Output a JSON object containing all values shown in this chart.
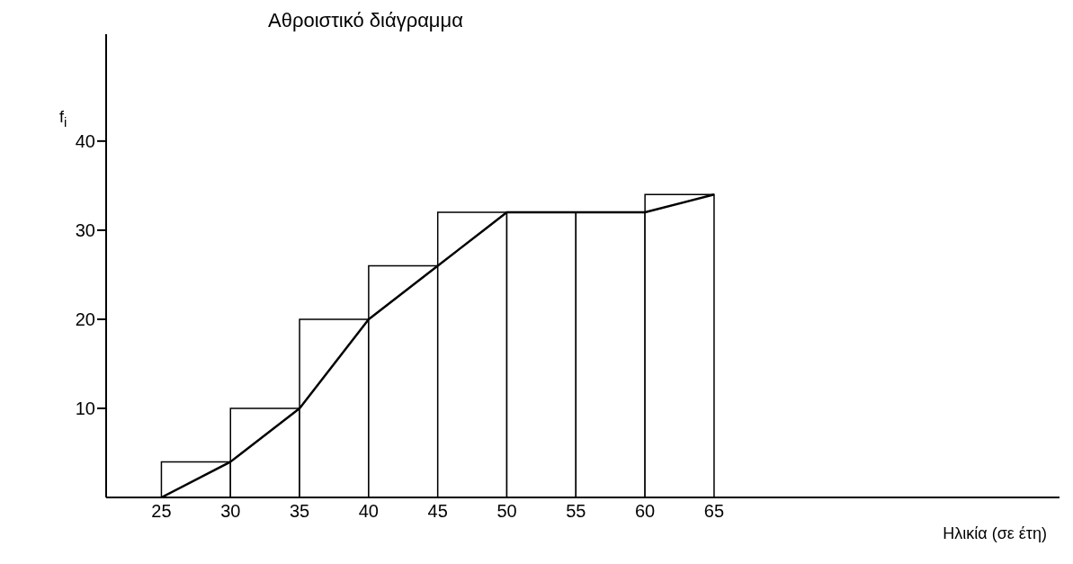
{
  "chart_data": {
    "type": "histogram",
    "title": "Αθροιστικό διάγραμμα",
    "xlabel": "Ηλικία (σε έτη)",
    "ylabel": "f$_{i}$",
    "bins": [
      25,
      30,
      35,
      40,
      45,
      50,
      55,
      60,
      65
    ],
    "values": [
      4,
      10,
      20,
      26,
      32,
      32,
      32,
      34
    ],
    "color": "#ffffff",
    "series": [
      {
        "type": "line",
        "color": "#000000",
        "x": [
          25,
          30,
          35,
          40,
          45,
          50,
          55,
          60,
          65
        ],
        "values": [
          0,
          4,
          10,
          20,
          26,
          32,
          32,
          32,
          34
        ]
      }
    ],
    "xlim": [
      21,
      90
    ],
    "xticks": [
      25,
      30,
      35,
      40,
      45,
      50,
      55,
      60,
      65
    ],
    "ylim": [
      0,
      52
    ],
    "yticks": [
      10,
      20,
      30,
      40
    ],
    "grid": false,
    "legend": false,
    "marker": "none"
  }
}
